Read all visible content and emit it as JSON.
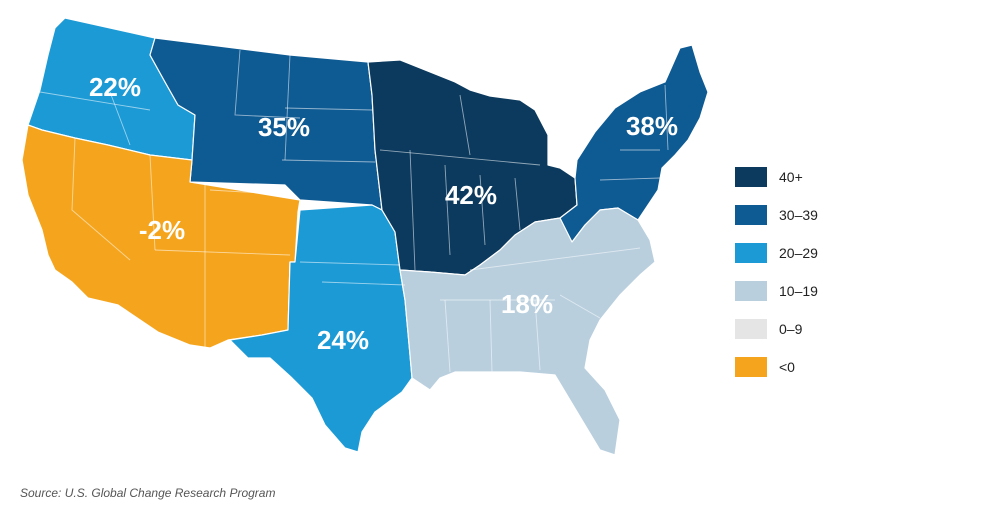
{
  "colors": {
    "c40": "#0b3a5e",
    "c30": "#0e5a93",
    "c20": "#1b9ad6",
    "c10": "#b9cfde",
    "c0": "#e5e5e5",
    "neg": "#f5a51d"
  },
  "regions": [
    {
      "id": "northwest",
      "label": "22%",
      "color": "c20"
    },
    {
      "id": "great-plains-north",
      "label": "35%",
      "color": "c30"
    },
    {
      "id": "southwest",
      "label": "-2%",
      "color": "neg"
    },
    {
      "id": "great-plains-south",
      "label": "24%",
      "color": "c20"
    },
    {
      "id": "midwest",
      "label": "42%",
      "color": "c40"
    },
    {
      "id": "northeast",
      "label": "38%",
      "color": "c30"
    },
    {
      "id": "southeast",
      "label": "18%",
      "color": "c10"
    }
  ],
  "legend": [
    {
      "label": "40+",
      "color": "c40"
    },
    {
      "label": "30–39",
      "color": "c30"
    },
    {
      "label": "20–29",
      "color": "c20"
    },
    {
      "label": "10–19",
      "color": "c10"
    },
    {
      "label": "0–9",
      "color": "c0"
    },
    {
      "label": "<0",
      "color": "neg"
    }
  ],
  "source": "Source: U.S. Global Change Research Program"
}
